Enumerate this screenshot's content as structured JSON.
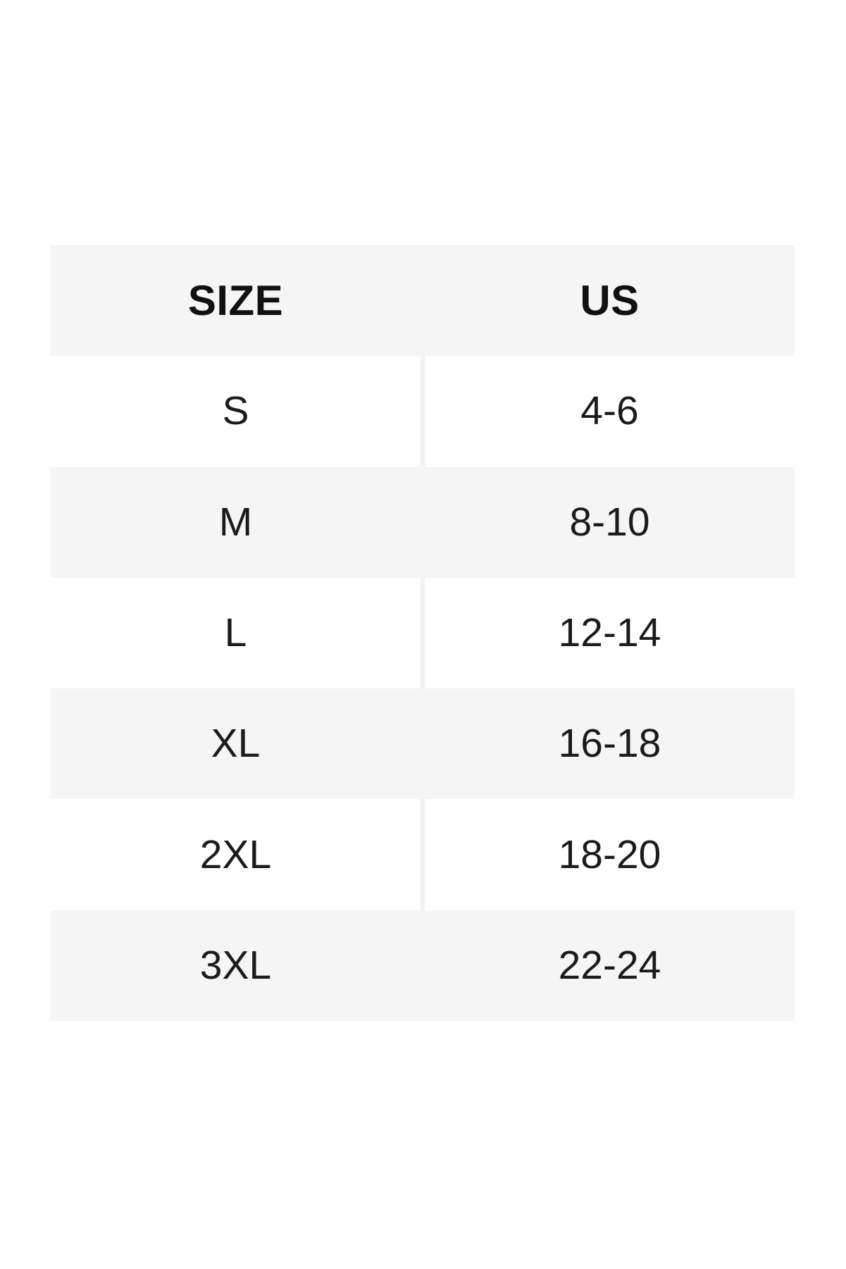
{
  "chart_data": {
    "type": "table",
    "columns": [
      "SIZE",
      "US"
    ],
    "rows": [
      [
        "S",
        "4-6"
      ],
      [
        "M",
        "8-10"
      ],
      [
        "L",
        "12-14"
      ],
      [
        "XL",
        "16-18"
      ],
      [
        "2XL",
        "18-20"
      ],
      [
        "3XL",
        "22-24"
      ]
    ],
    "layout_hints": {
      "striped": true,
      "header_shaded": true,
      "shaded_rows": [
        "header",
        "M",
        "XL",
        "3XL"
      ],
      "column_divider_visible_on_white_rows": true
    }
  },
  "colors": {
    "page_bg": "#ffffff",
    "stripe_bg": "#f5f5f6",
    "row_bg": "#ffffff",
    "divider": "#f2f2f4",
    "header_text": "#111111",
    "cell_text": "#1b1b1d"
  }
}
